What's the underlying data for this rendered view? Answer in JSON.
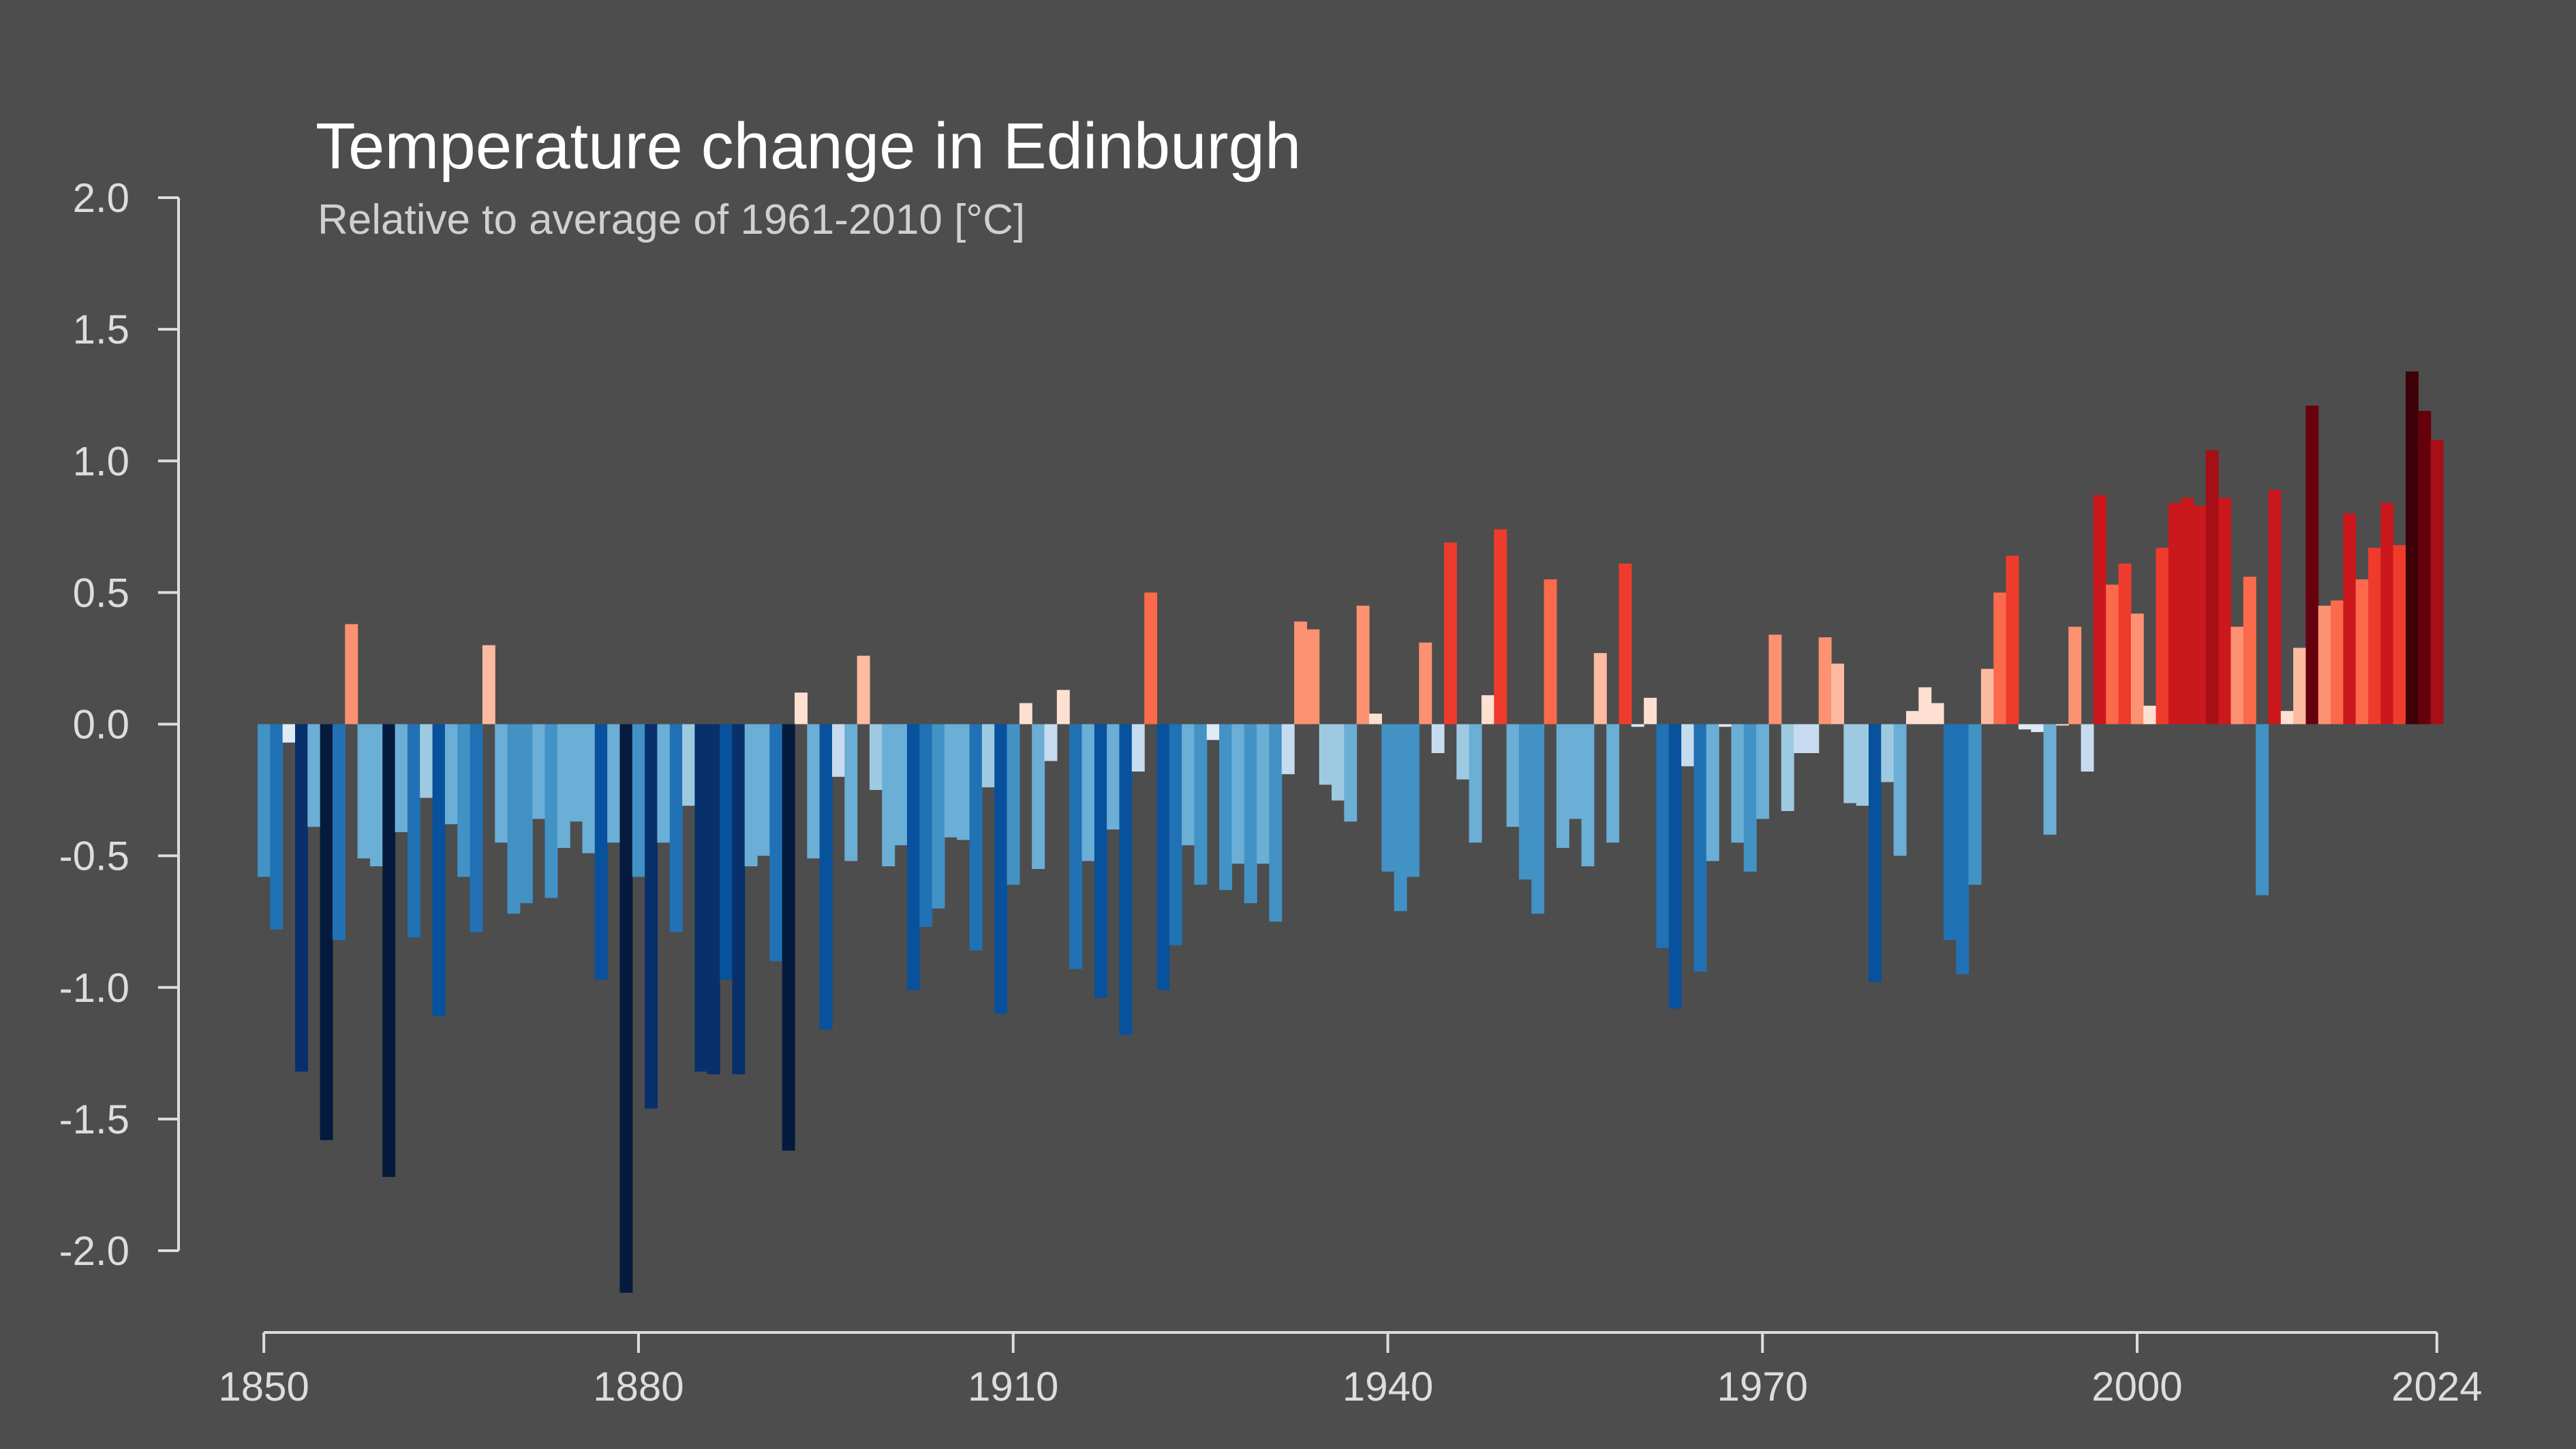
{
  "chart_data": {
    "type": "bar",
    "title": "Temperature change in Edinburgh",
    "subtitle": "Relative to average of 1961-2010  [°C]",
    "xlabel": "",
    "ylabel": "",
    "xlim": [
      1850,
      2024
    ],
    "ylim": [
      -2.0,
      2.0
    ],
    "x_ticks": [
      "1850",
      "1880",
      "1910",
      "1940",
      "1970",
      "2000",
      "2024"
    ],
    "y_ticks": [
      "2.0",
      "1.5",
      "1.0",
      "0.5",
      "0.0",
      "-0.5",
      "-1.0",
      "-1.5",
      "-2.0"
    ],
    "grid": false,
    "legend": "none",
    "color_scale": {
      "cold": [
        "#041b3d",
        "#08306b",
        "#08519c",
        "#2171b5",
        "#4292c6",
        "#6baed6",
        "#9ecae1",
        "#c6dbef",
        "#deebf7"
      ],
      "warm": [
        "#fee0d2",
        "#fcbba1",
        "#fc9272",
        "#fb6a4a",
        "#ef3b2c",
        "#cb181d",
        "#a50f15",
        "#67000d",
        "#3d0007"
      ]
    },
    "years": [
      1850,
      1851,
      1852,
      1853,
      1854,
      1855,
      1856,
      1857,
      1858,
      1859,
      1860,
      1861,
      1862,
      1863,
      1864,
      1865,
      1866,
      1867,
      1868,
      1869,
      1870,
      1871,
      1872,
      1873,
      1874,
      1875,
      1876,
      1877,
      1878,
      1879,
      1880,
      1881,
      1882,
      1883,
      1884,
      1885,
      1886,
      1887,
      1888,
      1889,
      1890,
      1891,
      1892,
      1893,
      1894,
      1895,
      1896,
      1897,
      1898,
      1899,
      1900,
      1901,
      1902,
      1903,
      1904,
      1905,
      1906,
      1907,
      1908,
      1909,
      1910,
      1911,
      1912,
      1913,
      1914,
      1915,
      1916,
      1917,
      1918,
      1919,
      1920,
      1921,
      1922,
      1923,
      1924,
      1925,
      1926,
      1927,
      1928,
      1929,
      1930,
      1931,
      1932,
      1933,
      1934,
      1935,
      1936,
      1937,
      1938,
      1939,
      1940,
      1941,
      1942,
      1943,
      1944,
      1945,
      1946,
      1947,
      1948,
      1949,
      1950,
      1951,
      1952,
      1953,
      1954,
      1955,
      1956,
      1957,
      1958,
      1959,
      1960,
      1961,
      1962,
      1963,
      1964,
      1965,
      1966,
      1967,
      1968,
      1969,
      1970,
      1971,
      1972,
      1973,
      1974,
      1975,
      1976,
      1977,
      1978,
      1979,
      1980,
      1981,
      1982,
      1983,
      1984,
      1985,
      1986,
      1987,
      1988,
      1989,
      1990,
      1991,
      1992,
      1993,
      1994,
      1995,
      1996,
      1997,
      1998,
      1999,
      2000,
      2001,
      2002,
      2003,
      2004,
      2005,
      2006,
      2007,
      2008,
      2009,
      2010,
      2011,
      2012,
      2013,
      2014,
      2015,
      2016,
      2017,
      2018,
      2019,
      2020,
      2021,
      2022,
      2023,
      2024
    ],
    "values": [
      -0.58,
      -0.78,
      -0.07,
      -1.32,
      -0.39,
      -1.58,
      -0.82,
      0.38,
      -0.51,
      -0.54,
      -1.72,
      -0.41,
      -0.81,
      -0.28,
      -1.11,
      -0.38,
      -0.58,
      -0.79,
      0.3,
      -0.45,
      -0.72,
      -0.68,
      -0.36,
      -0.66,
      -0.47,
      -0.37,
      -0.49,
      -0.97,
      -0.45,
      -2.16,
      -0.58,
      -1.46,
      -0.45,
      -0.79,
      -0.31,
      -1.32,
      -1.33,
      -0.97,
      -1.33,
      -0.54,
      -0.5,
      -0.9,
      -1.62,
      0.12,
      -0.51,
      -1.16,
      -0.2,
      -0.52,
      0.26,
      -0.25,
      -0.54,
      -0.46,
      -1.01,
      -0.77,
      -0.7,
      -0.43,
      -0.44,
      -0.86,
      -0.24,
      -1.1,
      -0.61,
      0.08,
      -0.55,
      -0.14,
      0.13,
      -0.93,
      -0.52,
      -1.04,
      -0.4,
      -1.18,
      -0.18,
      0.5,
      -1.01,
      -0.84,
      -0.46,
      -0.61,
      -0.06,
      -0.63,
      -0.53,
      -0.68,
      -0.53,
      -0.75,
      -0.19,
      0.39,
      0.36,
      -0.23,
      -0.29,
      -0.37,
      0.45,
      0.04,
      -0.56,
      -0.71,
      -0.58,
      0.31,
      -0.11,
      0.69,
      -0.21,
      -0.45,
      0.11,
      0.74,
      -0.39,
      -0.59,
      -0.72,
      0.55,
      -0.47,
      -0.36,
      -0.54,
      0.27,
      -0.45,
      0.61,
      -0.01,
      0.1,
      -0.85,
      -1.08,
      -0.16,
      -0.94,
      -0.52,
      -0.01,
      -0.45,
      -0.56,
      -0.36,
      0.34,
      -0.33,
      -0.11,
      -0.11,
      0.33,
      0.23,
      -0.3,
      -0.31,
      -0.98,
      -0.22,
      -0.5,
      0.05,
      0.14,
      0.08,
      -0.82,
      -0.95,
      -0.61,
      0.21,
      0.5,
      0.64,
      -0.02,
      -0.03,
      -0.42,
      0.0,
      0.37,
      -0.18,
      0.87,
      0.53,
      0.61,
      0.42,
      0.07,
      0.67,
      0.84,
      0.86,
      0.83,
      1.04,
      0.86,
      0.37,
      0.56,
      -0.65,
      0.89,
      0.05,
      0.29,
      1.21,
      0.45,
      0.47,
      0.8,
      0.55,
      0.67,
      0.84,
      0.68,
      1.34,
      1.19,
      1.08
    ]
  }
}
